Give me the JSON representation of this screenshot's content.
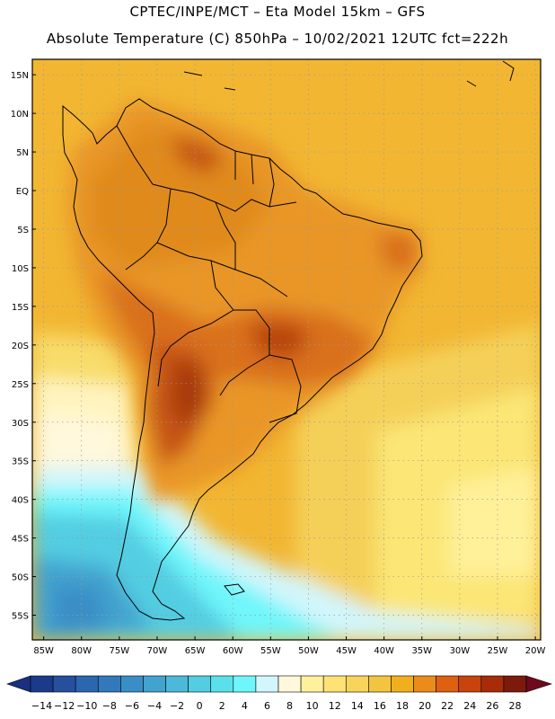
{
  "header": {
    "line1": "CPTEC/INPE/MCT –  Eta Model 15km – GFS",
    "line2": "Absolute Temperature (C) 850hPa – 10/02/2021 12UTC fct=222h"
  },
  "map": {
    "lat_labels": [
      {
        "lat": 15,
        "text": "15N"
      },
      {
        "lat": 10,
        "text": "10N"
      },
      {
        "lat": 5,
        "text": "5N"
      },
      {
        "lat": 0,
        "text": "EQ"
      },
      {
        "lat": -5,
        "text": "5S"
      },
      {
        "lat": -10,
        "text": "10S"
      },
      {
        "lat": -15,
        "text": "15S"
      },
      {
        "lat": -20,
        "text": "20S"
      },
      {
        "lat": -25,
        "text": "25S"
      },
      {
        "lat": -30,
        "text": "30S"
      },
      {
        "lat": -35,
        "text": "35S"
      },
      {
        "lat": -40,
        "text": "40S"
      },
      {
        "lat": -45,
        "text": "45S"
      },
      {
        "lat": -50,
        "text": "50S"
      },
      {
        "lat": -55,
        "text": "55S"
      }
    ],
    "lon_labels": [
      {
        "lon": -85,
        "text": "85W"
      },
      {
        "lon": -80,
        "text": "80W"
      },
      {
        "lon": -75,
        "text": "75W"
      },
      {
        "lon": -70,
        "text": "70W"
      },
      {
        "lon": -65,
        "text": "65W"
      },
      {
        "lon": -60,
        "text": "60W"
      },
      {
        "lon": -55,
        "text": "55W"
      },
      {
        "lon": -50,
        "text": "50W"
      },
      {
        "lon": -45,
        "text": "45W"
      },
      {
        "lon": -40,
        "text": "40W"
      },
      {
        "lon": -35,
        "text": "35W"
      },
      {
        "lon": -30,
        "text": "30W"
      },
      {
        "lon": -25,
        "text": "25W"
      },
      {
        "lon": -20,
        "text": "20W"
      }
    ]
  },
  "colorbar": {
    "labels": [
      "-14",
      "-12",
      "-10",
      "-8",
      "-6",
      "-4",
      "-2",
      "0",
      "2",
      "4",
      "6",
      "8",
      "10",
      "12",
      "14",
      "16",
      "18",
      "20",
      "22",
      "24",
      "26",
      "28"
    ],
    "low_color": "#1a2f80",
    "high_color": "#6e0a1e",
    "colors": [
      "#1c3a8c",
      "#26509e",
      "#2c66b0",
      "#3279bc",
      "#3a8ec6",
      "#43a3cf",
      "#4cb9d8",
      "#52cde2",
      "#5ae0eb",
      "#6ff6fb",
      "#d2f6fb",
      "#fff8dc",
      "#fff19a",
      "#ffe276",
      "#f8d45c",
      "#f2c440",
      "#f0b01e",
      "#eb8c1a",
      "#de6010",
      "#c9430d",
      "#a82b0a",
      "#7c1b0c"
    ]
  },
  "style": {
    "land_warm": "#e89a30",
    "ocean_warm": "#f2c440",
    "cool_ocean": "#43c8e6",
    "grid_color": "#9a9a9a"
  }
}
